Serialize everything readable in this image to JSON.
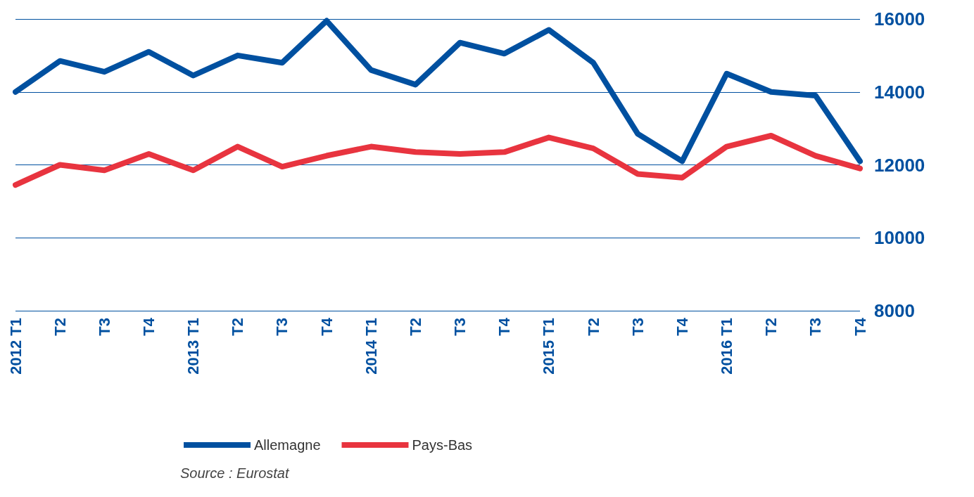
{
  "chart_data": {
    "type": "line",
    "categories": [
      "2012 T1",
      "T2",
      "T3",
      "T4",
      "2013 T1",
      "T2",
      "T3",
      "T4",
      "2014 T1",
      "T2",
      "T3",
      "T4",
      "2015 T1",
      "T2",
      "T3",
      "T4",
      "2016 T1",
      "T2",
      "T3",
      "T4"
    ],
    "series": [
      {
        "name": "Allemagne",
        "color": "#0050a0",
        "values": [
          14000,
          14850,
          14550,
          15100,
          14450,
          15000,
          14800,
          15950,
          14600,
          14200,
          15350,
          15050,
          15700,
          14800,
          12850,
          12100,
          14500,
          14000,
          13900,
          12100
        ]
      },
      {
        "name": "Pays-Bas",
        "color": "#e8343f",
        "values": [
          11450,
          12000,
          11850,
          12300,
          11850,
          12500,
          11950,
          12250,
          12500,
          12350,
          12300,
          12350,
          12750,
          12450,
          11750,
          11650,
          12500,
          12800,
          12250,
          11900
        ]
      }
    ],
    "ylim": [
      8000,
      16000
    ],
    "yticks": [
      8000,
      10000,
      12000,
      14000,
      16000
    ],
    "grid": "y",
    "legend": "bottom",
    "line_style": "solid",
    "annotations": [
      "Source : Eurostat"
    ]
  }
}
